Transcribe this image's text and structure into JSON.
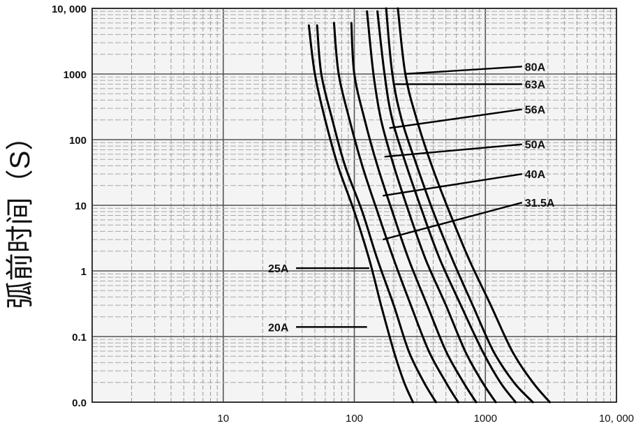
{
  "chart_data": {
    "type": "line",
    "title": "",
    "xlabel": "",
    "ylabel": "弧前时间（S）",
    "xscale": "log",
    "yscale": "log",
    "xlim": [
      1,
      10000
    ],
    "ylim": [
      0.01,
      10000
    ],
    "grid": true,
    "x_ticks": [
      {
        "value": 10,
        "label": "10"
      },
      {
        "value": 100,
        "label": "100"
      },
      {
        "value": 1000,
        "label": "1000"
      },
      {
        "value": 10000,
        "label": "10, 000"
      }
    ],
    "y_ticks": [
      {
        "value": 0.01,
        "label": "0.0"
      },
      {
        "value": 0.1,
        "label": "0.1"
      },
      {
        "value": 1,
        "label": "1"
      },
      {
        "value": 10,
        "label": "10"
      },
      {
        "value": 100,
        "label": "100"
      },
      {
        "value": 1000,
        "label": "1000"
      },
      {
        "value": 10000,
        "label": "10, 000"
      }
    ],
    "series": [
      {
        "name": "20A",
        "points": [
          [
            45,
            5500
          ],
          [
            50,
            1000
          ],
          [
            60,
            200
          ],
          [
            75,
            40
          ],
          [
            100,
            8
          ],
          [
            130,
            1.5
          ],
          [
            160,
            0.3
          ],
          [
            200,
            0.06
          ],
          [
            240,
            0.02
          ],
          [
            280,
            0.01
          ]
        ]
      },
      {
        "name": "25A",
        "points": [
          [
            52,
            5500
          ],
          [
            56,
            1000
          ],
          [
            68,
            200
          ],
          [
            85,
            40
          ],
          [
            115,
            8
          ],
          [
            150,
            1.5
          ],
          [
            200,
            0.3
          ],
          [
            260,
            0.06
          ],
          [
            340,
            0.02
          ],
          [
            420,
            0.01
          ]
        ]
      },
      {
        "name": "31.5A",
        "points": [
          [
            70,
            6000
          ],
          [
            76,
            1000
          ],
          [
            92,
            200
          ],
          [
            115,
            40
          ],
          [
            150,
            8
          ],
          [
            200,
            1.5
          ],
          [
            270,
            0.3
          ],
          [
            370,
            0.06
          ],
          [
            500,
            0.02
          ],
          [
            620,
            0.01
          ]
        ]
      },
      {
        "name": "40A",
        "points": [
          [
            95,
            6000
          ],
          [
            100,
            1000
          ],
          [
            120,
            200
          ],
          [
            150,
            40
          ],
          [
            195,
            8
          ],
          [
            260,
            1.5
          ],
          [
            360,
            0.3
          ],
          [
            500,
            0.06
          ],
          [
            680,
            0.02
          ],
          [
            850,
            0.01
          ]
        ]
      },
      {
        "name": "50A",
        "points": [
          [
            125,
            9000
          ],
          [
            140,
            1000
          ],
          [
            160,
            200
          ],
          [
            200,
            40
          ],
          [
            260,
            8
          ],
          [
            350,
            1.5
          ],
          [
            500,
            0.3
          ],
          [
            700,
            0.06
          ],
          [
            950,
            0.02
          ],
          [
            1200,
            0.01
          ]
        ]
      },
      {
        "name": "56A",
        "points": [
          [
            150,
            9000
          ],
          [
            170,
            1000
          ],
          [
            195,
            200
          ],
          [
            250,
            40
          ],
          [
            330,
            8
          ],
          [
            450,
            1.5
          ],
          [
            650,
            0.3
          ],
          [
            950,
            0.06
          ],
          [
            1300,
            0.02
          ],
          [
            1700,
            0.01
          ]
        ]
      },
      {
        "name": "63A",
        "points": [
          [
            175,
            10000
          ],
          [
            195,
            1000
          ],
          [
            230,
            200
          ],
          [
            300,
            40
          ],
          [
            400,
            8
          ],
          [
            560,
            1.5
          ],
          [
            800,
            0.3
          ],
          [
            1150,
            0.06
          ],
          [
            1650,
            0.02
          ],
          [
            2300,
            0.01
          ]
        ]
      },
      {
        "name": "80A",
        "points": [
          [
            215,
            10000
          ],
          [
            245,
            1000
          ],
          [
            300,
            200
          ],
          [
            390,
            40
          ],
          [
            530,
            8
          ],
          [
            750,
            1.5
          ],
          [
            1100,
            0.3
          ],
          [
            1600,
            0.06
          ],
          [
            2300,
            0.02
          ],
          [
            3100,
            0.01
          ]
        ]
      }
    ],
    "annotations": [
      {
        "text": "80A",
        "series": "80A",
        "side": "right",
        "label_at": [
          2000,
          1300
        ],
        "arrow_to": [
          240,
          1000
        ]
      },
      {
        "text": "63A",
        "series": "63A",
        "side": "right",
        "label_at": [
          2000,
          700
        ],
        "arrow_to": [
          205,
          700
        ]
      },
      {
        "text": "56A",
        "series": "56A",
        "side": "right",
        "label_at": [
          2000,
          290
        ],
        "arrow_to": [
          185,
          150
        ]
      },
      {
        "text": "50A",
        "series": "50A",
        "side": "right",
        "label_at": [
          2000,
          85
        ],
        "arrow_to": [
          170,
          55
        ]
      },
      {
        "text": "40A",
        "series": "40A",
        "side": "right",
        "label_at": [
          2000,
          30
        ],
        "arrow_to": [
          165,
          14
        ]
      },
      {
        "text": "31.5A",
        "series": "31.5A",
        "side": "right",
        "label_at": [
          2000,
          11
        ],
        "arrow_to": [
          165,
          3
        ]
      },
      {
        "text": "25A",
        "series": "25A",
        "side": "left",
        "label_at": [
          22,
          1.1
        ],
        "arrow_to": [
          130,
          1.1
        ]
      },
      {
        "text": "20A",
        "series": "20A",
        "side": "left",
        "label_at": [
          22,
          0.14
        ],
        "arrow_to": [
          125,
          0.14
        ]
      }
    ]
  }
}
